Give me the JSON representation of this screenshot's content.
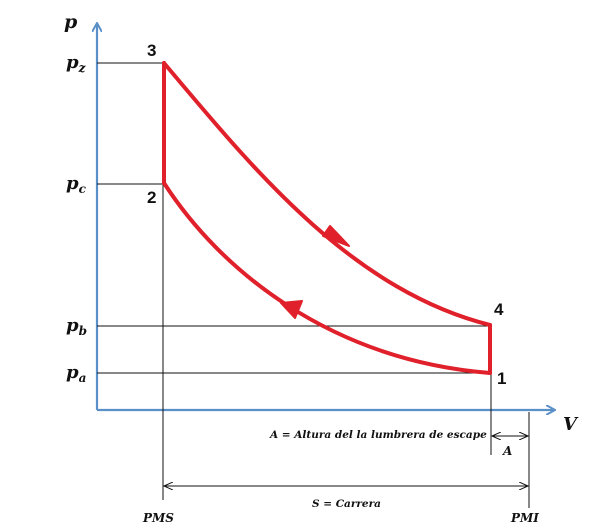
{
  "axes": {
    "y_label": "p",
    "x_label": "V"
  },
  "pressure_labels": {
    "pz_base": "p",
    "pz_sub": "z",
    "pc_base": "p",
    "pc_sub": "c",
    "pb_base": "p",
    "pb_sub": "b",
    "pa_base": "p",
    "pa_sub": "a"
  },
  "points": {
    "p1": "1",
    "p2": "2",
    "p3": "3",
    "p4": "4"
  },
  "positions": {
    "pms": "PMS",
    "pmi": "PMI"
  },
  "annotations": {
    "a_definition": "A = Altura del la lumbrera de escape",
    "a_symbol": "A",
    "s_definition": "S = Carrera"
  },
  "colors": {
    "axis": "#5b8fc7",
    "cycle": "#e0202a",
    "lines": "#111111"
  }
}
